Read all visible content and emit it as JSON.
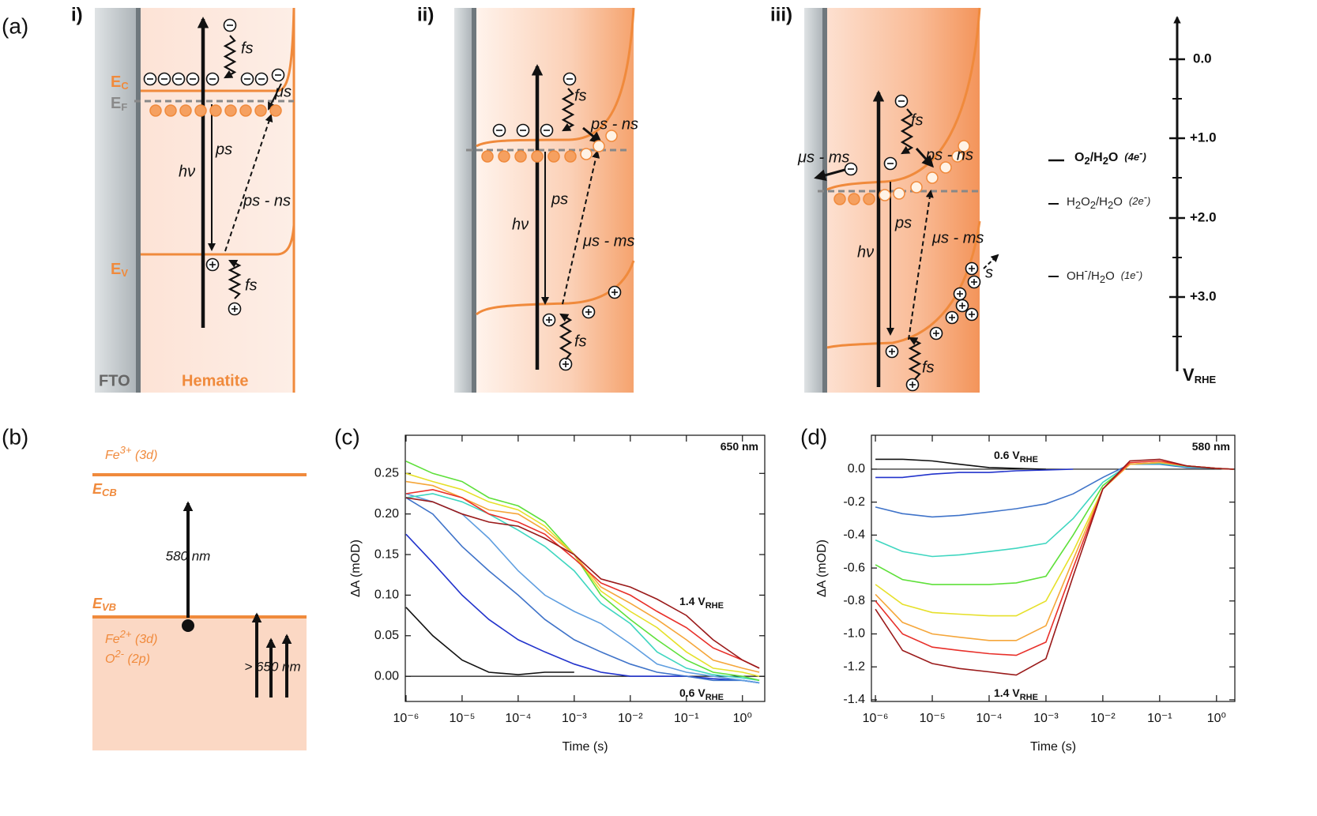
{
  "panel_a": {
    "label": "(a)",
    "schemes": [
      {
        "label": "i)",
        "annotations": [
          "fs",
          "μs",
          "ps",
          "hν",
          "ps - ns",
          "fs"
        ]
      },
      {
        "label": "ii)",
        "annotations": [
          "fs",
          "ps - ns",
          "ps",
          "hν",
          "μs - ms",
          "fs"
        ]
      },
      {
        "label": "iii)",
        "annotations": [
          "μs - ms",
          "fs",
          "ps - ns",
          "ps",
          "hν",
          "μs - ms",
          "s",
          "fs"
        ]
      }
    ],
    "bands": {
      "ec": [
        "E",
        "C"
      ],
      "ef": [
        "E",
        "F"
      ],
      "ev": [
        "E",
        "V"
      ]
    },
    "fto": "FTO",
    "hematite": "Hematite",
    "potential_axis": {
      "ticks": [
        "0.0",
        "+1.0",
        "+2.0",
        "+3.0"
      ],
      "label": [
        "V",
        "RHE"
      ],
      "couples": [
        {
          "species": [
            "O",
            "2",
            "/H",
            "2",
            "O"
          ],
          "electrons": [
            "(4e",
            "-",
            ")"
          ]
        },
        {
          "species": [
            "H",
            "2",
            "O",
            "2",
            "/H",
            "2",
            "O"
          ],
          "electrons": [
            "(2e",
            "-",
            ")"
          ]
        },
        {
          "species": [
            "OH",
            "-",
            "/H",
            "2",
            "O"
          ],
          "electrons": [
            "(1e",
            "-",
            ")"
          ]
        }
      ]
    }
  },
  "panel_b": {
    "label": "(b)",
    "fe3": [
      "Fe",
      "3+",
      " (3d)"
    ],
    "ecb": [
      "E",
      "CB"
    ],
    "evb": [
      "E",
      "VB"
    ],
    "fe2": [
      "Fe",
      "2+",
      " (3d)"
    ],
    "o2": [
      "O",
      "2-",
      " (2p)"
    ],
    "excitation": "580 nm",
    "sub_gap": "> 650 nm"
  },
  "chart_data": [
    {
      "type": "line",
      "panel_label": "(c)",
      "x_label": "Time (s)",
      "y_label": "ΔA (mOD)",
      "xscale": "log",
      "zero_line": true,
      "x": [
        1e-06,
        3e-06,
        1e-05,
        3e-05,
        0.0001,
        0.0003,
        0.001,
        0.003,
        0.01,
        0.03,
        0.1,
        0.3,
        1,
        2
      ],
      "xlim": [
        9.7e-07,
        2.5
      ],
      "ylim": [
        -0.031,
        0.297
      ],
      "xticks": [
        {
          "value": 1e-06,
          "label": "10⁻⁶"
        },
        {
          "value": 1e-05,
          "label": "10⁻⁵"
        },
        {
          "value": 0.0001,
          "label": "10⁻⁴"
        },
        {
          "value": 0.001,
          "label": "10⁻³"
        },
        {
          "value": 0.01,
          "label": "10⁻²"
        },
        {
          "value": 0.1,
          "label": "10⁻¹"
        },
        {
          "value": 1,
          "label": "10⁰"
        }
      ],
      "yticks": [
        {
          "value": 0,
          "label": "0.00"
        },
        {
          "value": 0.05,
          "label": "0.05"
        },
        {
          "value": 0.1,
          "label": "0.10"
        },
        {
          "value": 0.15,
          "label": "0.15"
        },
        {
          "value": 0.2,
          "label": "0.20"
        },
        {
          "value": 0.25,
          "label": "0.25"
        }
      ],
      "series": [
        {
          "color": "#111111",
          "values": [
            0.085,
            0.05,
            0.02,
            0.005,
            0.002,
            0.005,
            0.005,
            null,
            null,
            null,
            null,
            null,
            null,
            null
          ]
        },
        {
          "color": "#2233cc",
          "values": [
            0.175,
            0.14,
            0.1,
            0.07,
            0.045,
            0.03,
            0.015,
            0.005,
            0.0,
            0.0,
            0.0,
            -0.003,
            -0.005,
            -0.008
          ]
        },
        {
          "color": "#3f73c9",
          "values": [
            0.22,
            0.2,
            0.16,
            0.13,
            0.1,
            0.07,
            0.045,
            0.03,
            0.015,
            0.005,
            0.0,
            -0.005,
            -0.005,
            -0.008
          ]
        },
        {
          "color": "#5f9ee0",
          "values": [
            0.225,
            0.215,
            0.2,
            0.17,
            0.13,
            0.1,
            0.08,
            0.065,
            0.04,
            0.015,
            0.005,
            0.0,
            -0.005,
            -0.008
          ]
        },
        {
          "color": "#3fd6c0",
          "values": [
            0.22,
            0.225,
            0.215,
            0.2,
            0.18,
            0.16,
            0.13,
            0.09,
            0.065,
            0.03,
            0.01,
            0.002,
            -0.002,
            -0.005
          ]
        },
        {
          "color": "#5ee03a",
          "values": [
            0.265,
            0.25,
            0.24,
            0.22,
            0.21,
            0.19,
            0.15,
            0.1,
            0.07,
            0.045,
            0.02,
            0.005,
            0.0,
            -0.005
          ]
        },
        {
          "color": "#e6e02a",
          "values": [
            0.25,
            0.24,
            0.23,
            0.215,
            0.205,
            0.185,
            0.15,
            0.105,
            0.08,
            0.06,
            0.03,
            0.01,
            0.005,
            0.0
          ]
        },
        {
          "color": "#f5a63a",
          "values": [
            0.24,
            0.235,
            0.22,
            0.205,
            0.2,
            0.18,
            0.15,
            0.11,
            0.09,
            0.07,
            0.045,
            0.02,
            0.01,
            0.005
          ]
        },
        {
          "color": "#e8302a",
          "values": [
            0.225,
            0.23,
            0.22,
            0.2,
            0.19,
            0.175,
            0.145,
            0.115,
            0.1,
            0.08,
            0.06,
            0.035,
            0.02,
            0.01
          ]
        },
        {
          "color": "#9a1a1a",
          "values": [
            0.22,
            0.215,
            0.2,
            0.19,
            0.185,
            0.17,
            0.15,
            0.12,
            0.11,
            0.095,
            0.075,
            0.045,
            0.02,
            0.01
          ]
        }
      ],
      "annotations": [
        {
          "text": "650 nm"
        },
        {
          "text": "1.4 V",
          "sub": "RHE"
        },
        {
          "text": "0.6 V",
          "sub": "RHE"
        }
      ]
    },
    {
      "type": "line",
      "panel_label": "(d)",
      "x_label": "Time (s)",
      "y_label": "ΔA (mOD)",
      "xscale": "log",
      "zero_line": true,
      "x": [
        1e-06,
        3e-06,
        1e-05,
        3e-05,
        0.0001,
        0.0003,
        0.001,
        0.003,
        0.01,
        0.03,
        0.1,
        0.3,
        1,
        2
      ],
      "xlim": [
        8.5e-07,
        2.1
      ],
      "ylim": [
        -1.41,
        0.206
      ],
      "xticks": [
        {
          "value": 1e-06,
          "label": "10⁻⁶"
        },
        {
          "value": 1e-05,
          "label": "10⁻⁵"
        },
        {
          "value": 0.0001,
          "label": "10⁻⁴"
        },
        {
          "value": 0.001,
          "label": "10⁻³"
        },
        {
          "value": 0.01,
          "label": "10⁻²"
        },
        {
          "value": 0.1,
          "label": "10⁻¹"
        },
        {
          "value": 1,
          "label": "10⁰"
        }
      ],
      "yticks": [
        {
          "value": 0,
          "label": "0.0"
        },
        {
          "value": -0.2,
          "label": "-0.2"
        },
        {
          "value": -0.4,
          "label": "-0.4"
        },
        {
          "value": -0.6,
          "label": "-0.6"
        },
        {
          "value": -0.8,
          "label": "-0.8"
        },
        {
          "value": -1,
          "label": "-1.0"
        },
        {
          "value": -1.2,
          "label": "-1.2"
        },
        {
          "value": -1.4,
          "label": "-1.4"
        }
      ],
      "series": [
        {
          "color": "#111111",
          "values": [
            0.06,
            0.06,
            0.05,
            0.03,
            0.01,
            0.005,
            0.0,
            null,
            null,
            null,
            null,
            null,
            null,
            null
          ]
        },
        {
          "color": "#2233cc",
          "values": [
            -0.05,
            -0.05,
            -0.03,
            -0.02,
            -0.02,
            -0.01,
            -0.005,
            0.0,
            null,
            null,
            null,
            null,
            null,
            null
          ]
        },
        {
          "color": "#3f73c9",
          "values": [
            -0.23,
            -0.27,
            -0.29,
            -0.28,
            -0.26,
            -0.24,
            -0.21,
            -0.15,
            -0.05,
            0.03,
            0.03,
            0.01,
            0.005,
            0.0
          ]
        },
        {
          "color": "#3fd6c0",
          "values": [
            -0.43,
            -0.5,
            -0.53,
            -0.52,
            -0.5,
            -0.48,
            -0.45,
            -0.3,
            -0.08,
            0.03,
            0.035,
            0.015,
            0.005,
            0.0
          ]
        },
        {
          "color": "#5ee03a",
          "values": [
            -0.58,
            -0.67,
            -0.7,
            -0.7,
            -0.7,
            -0.69,
            -0.65,
            -0.4,
            -0.1,
            0.03,
            0.04,
            0.02,
            0.005,
            0.0
          ]
        },
        {
          "color": "#e6e02a",
          "values": [
            -0.7,
            -0.82,
            -0.87,
            -0.88,
            -0.89,
            -0.89,
            -0.8,
            -0.5,
            -0.12,
            0.03,
            0.04,
            0.02,
            0.005,
            0.0
          ]
        },
        {
          "color": "#f5a63a",
          "values": [
            -0.76,
            -0.93,
            -1.0,
            -1.02,
            -1.04,
            -1.04,
            -0.95,
            -0.55,
            -0.12,
            0.03,
            0.04,
            0.02,
            0.005,
            0.0
          ]
        },
        {
          "color": "#e8302a",
          "values": [
            -0.8,
            -1.0,
            -1.08,
            -1.1,
            -1.12,
            -1.13,
            -1.05,
            -0.6,
            -0.12,
            0.04,
            0.05,
            0.02,
            0.005,
            0.0
          ]
        },
        {
          "color": "#9a1a1a",
          "values": [
            -0.85,
            -1.1,
            -1.18,
            -1.21,
            -1.23,
            -1.25,
            -1.15,
            -0.65,
            -0.12,
            0.05,
            0.06,
            0.02,
            0.005,
            0.0
          ]
        }
      ],
      "annotations": [
        {
          "text": "580 nm"
        },
        {
          "text": "0.6 V",
          "sub": "RHE"
        },
        {
          "text": "1.4 V",
          "sub": "RHE"
        }
      ]
    }
  ]
}
